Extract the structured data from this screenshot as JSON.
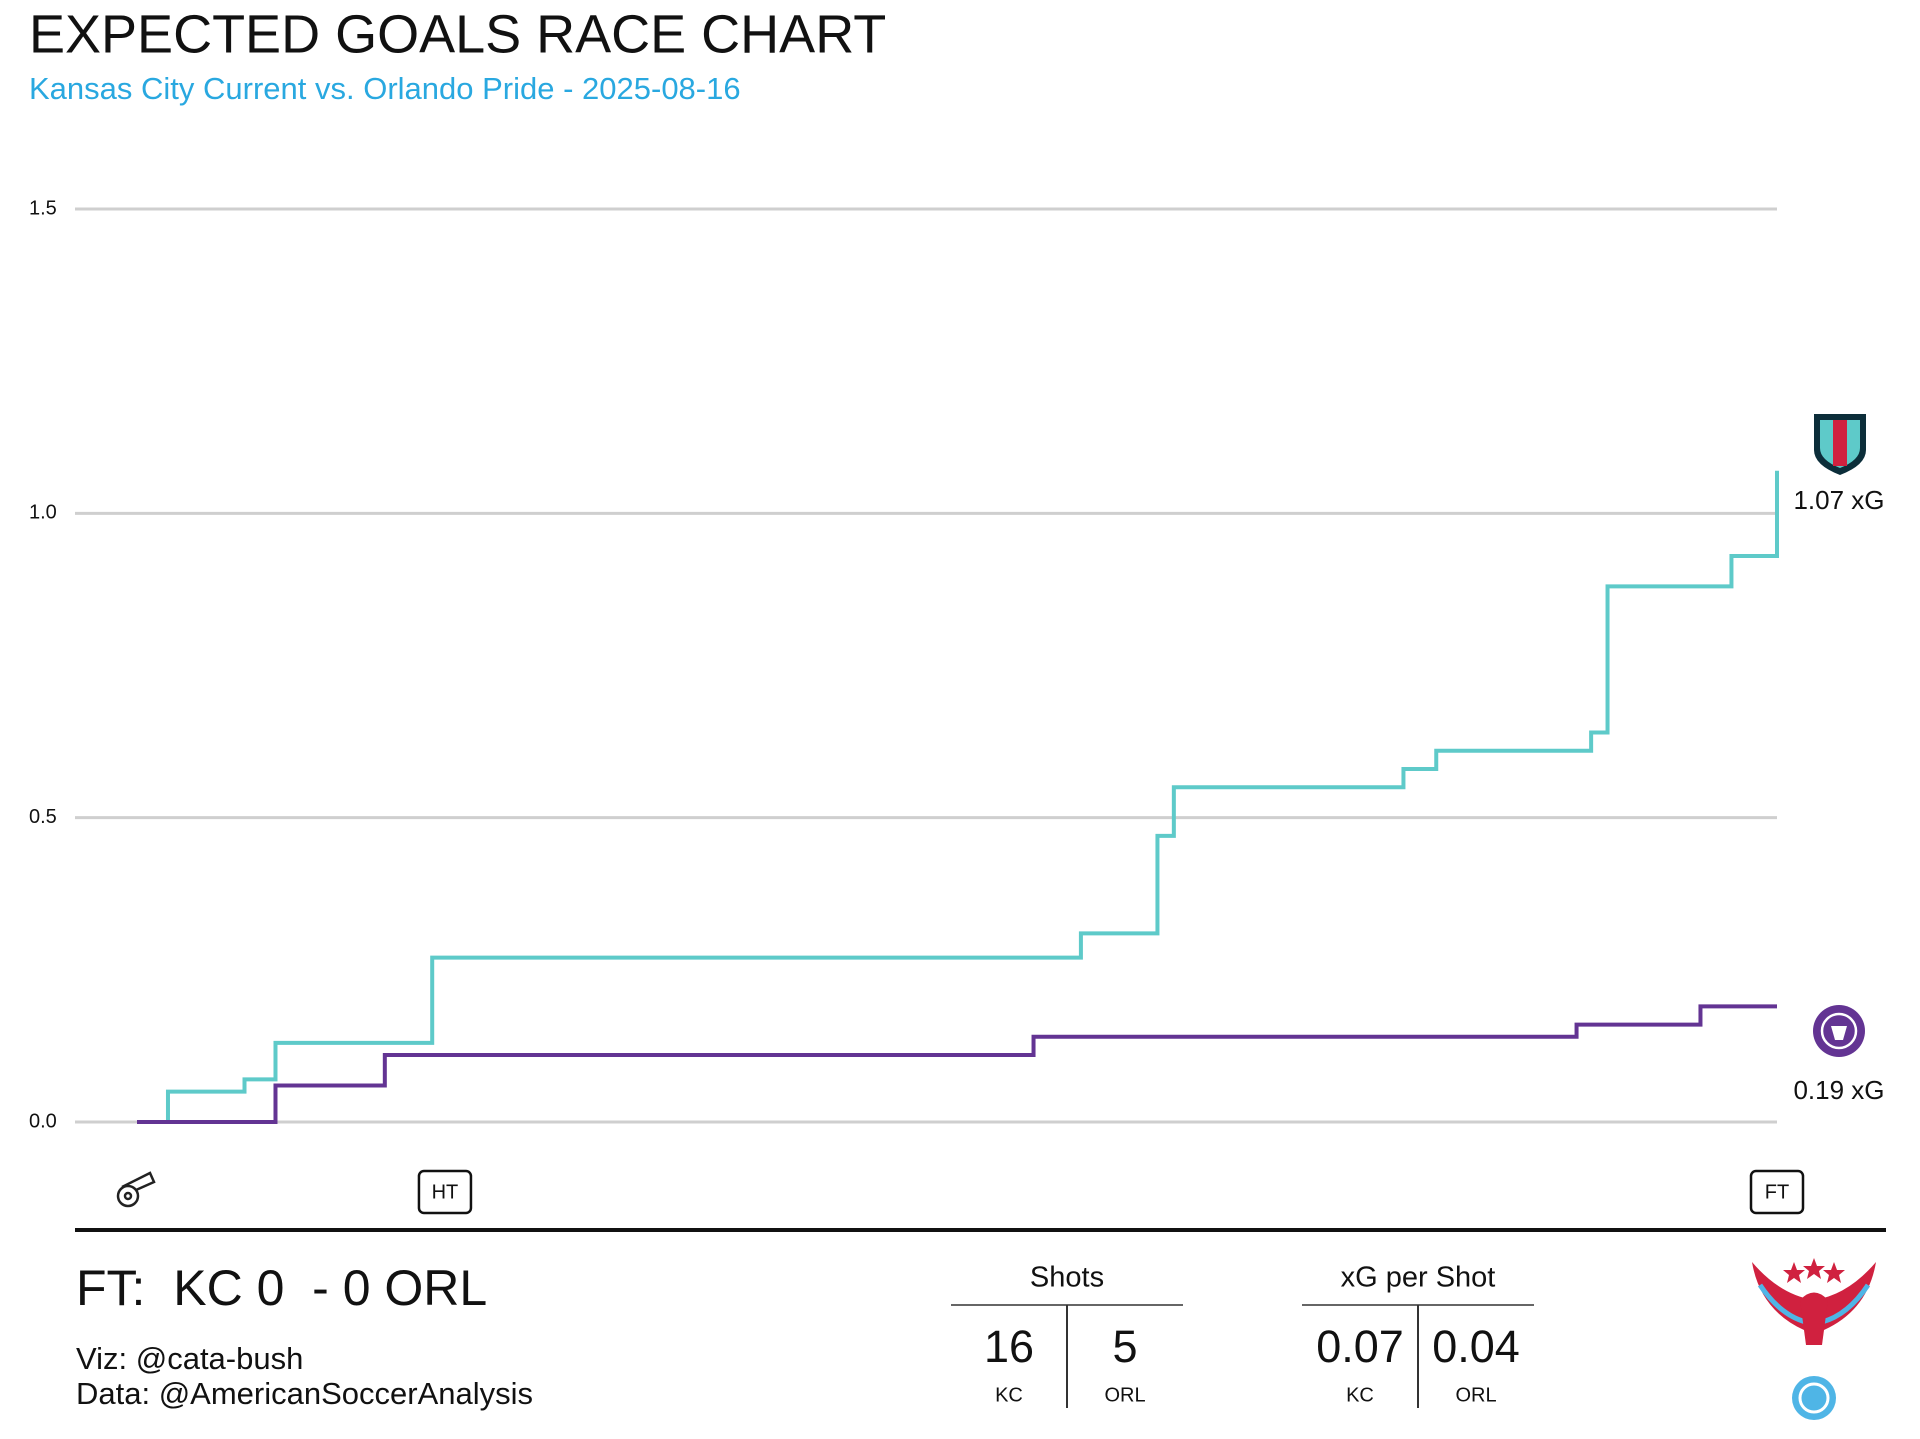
{
  "chart_data": {
    "type": "step",
    "title": "EXPECTED GOALS RACE CHART",
    "subtitle": "Kansas City Current vs. Orlando Pride - 2025-08-16",
    "xlim": [
      0,
      90
    ],
    "ylim": [
      0,
      1.5
    ],
    "yticks": [
      {
        "value": 0,
        "label": "0.0"
      },
      0.5,
      {
        "value": 1,
        "label": "1.0"
      },
      1.5
    ],
    "grid": true,
    "series": [
      {
        "name": "KC",
        "color": "#5ecac9",
        "end_label": "1.07 xG",
        "x": [
          1.7,
          1.7,
          5.9,
          7.6,
          16.2,
          51.8,
          56.0,
          56.9,
          69.5,
          71.3,
          79.8,
          80.7,
          87.5,
          90
        ],
        "values": [
          0,
          0.05,
          0.07,
          0.13,
          0.27,
          0.31,
          0.47,
          0.55,
          0.58,
          0.61,
          0.64,
          0.88,
          0.93,
          1.07
        ]
      },
      {
        "name": "ORL",
        "color": "#633493",
        "end_label": "0.19 xG",
        "x": [
          0,
          7.6,
          13.6,
          49.2,
          79.0,
          85.8,
          90
        ],
        "values": [
          0,
          0.06,
          0.11,
          0.14,
          0.16,
          0.19,
          0.19
        ]
      }
    ],
    "markers": [
      {
        "label": "HT",
        "x": 16.9
      },
      {
        "label": "FT",
        "x": 90
      }
    ],
    "score": "FT:  KC 0  - 0 ORL",
    "credits": [
      "Viz: @cata-bush",
      "Data: @AmericanSoccerAnalysis"
    ],
    "stats": [
      {
        "title": "Shots",
        "values": [
          16,
          5
        ],
        "teams": [
          "KC",
          "ORL"
        ]
      },
      {
        "title": "xG per Shot",
        "values": [
          0.07,
          0.04
        ],
        "teams": [
          "KC",
          "ORL"
        ]
      }
    ]
  }
}
